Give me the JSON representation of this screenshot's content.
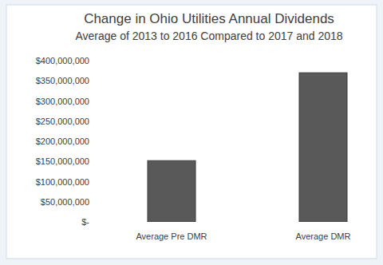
{
  "chart_data": {
    "type": "bar",
    "title": "Change in Ohio Utilities Annual Dividends",
    "subtitle": "Average of 2013 to 2016 Compared to 2017 and 2018",
    "categories": [
      "Average Pre DMR",
      "Average DMR"
    ],
    "values": [
      152000000,
      370000000
    ],
    "color": "#595959",
    "ylim": [
      0,
      400000000
    ],
    "yticks": [
      {
        "value": 0,
        "label": "$-"
      },
      {
        "value": 50000000,
        "label": "$50,000,000"
      },
      {
        "value": 100000000,
        "label": "$100,000,000"
      },
      {
        "value": 150000000,
        "label": "$150,000,000"
      },
      {
        "value": 200000000,
        "label": "$200,000,000"
      },
      {
        "value": 250000000,
        "label": "$250,000,000"
      },
      {
        "value": 300000000,
        "label": "$300,000,000"
      },
      {
        "value": 350000000,
        "label": "$350,000,000"
      },
      {
        "value": 400000000,
        "label": "$400,000,000"
      }
    ],
    "grid": false
  }
}
